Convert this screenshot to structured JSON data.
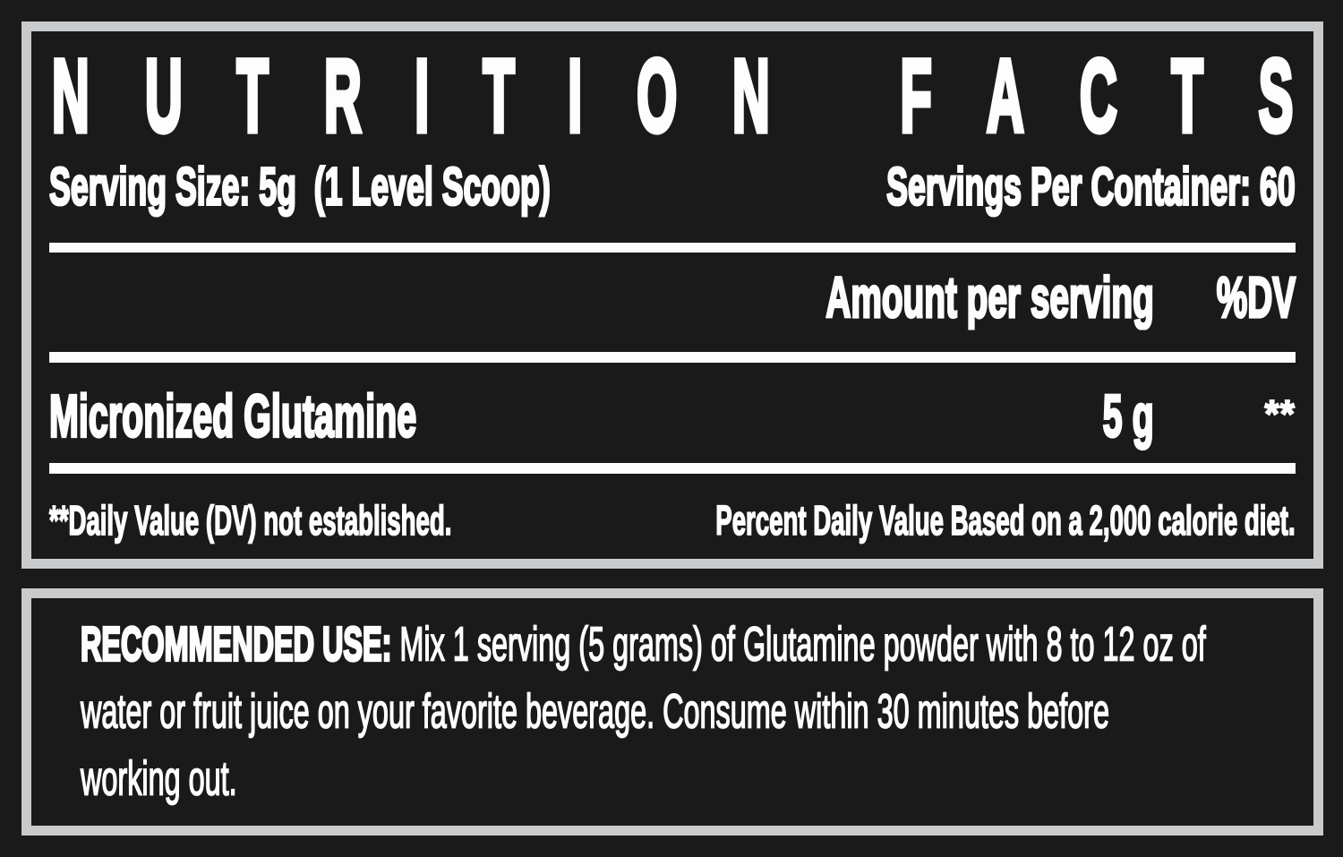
{
  "colors": {
    "background": "#1a1a1b",
    "frame": "#c9cacb",
    "text": "#fdfdfd"
  },
  "nutrition_facts": {
    "title": "NUTRITION FACTS",
    "serving_size": "Serving Size: 5g  (1 Level Scoop)",
    "servings_per_container": "Servings Per Container: 60",
    "amount_header": "Amount per serving",
    "dv_header": "%DV",
    "nutrient": {
      "name": "Micronized Glutamine",
      "amount": "5 g",
      "dv": "**"
    },
    "footnote_left": "**Daily Value (DV) not established.",
    "footnote_right": "Percent Daily Value Based on a 2,000 calorie diet."
  },
  "recommended_use": {
    "lead_in": "RECOMMENDED USE:",
    "lines": [
      " Mix 1 serving (5 grams) of Glutamine powder with 8 to 12 oz of",
      "water or fruit juice on your favorite beverage. Consume within 30 minutes before",
      "working out."
    ]
  }
}
